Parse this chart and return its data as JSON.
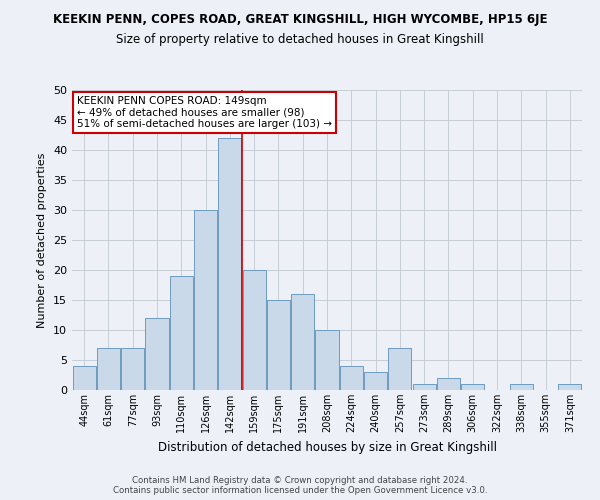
{
  "title": "KEEKIN PENN, COPES ROAD, GREAT KINGSHILL, HIGH WYCOMBE, HP15 6JE",
  "subtitle": "Size of property relative to detached houses in Great Kingshill",
  "xlabel": "Distribution of detached houses by size in Great Kingshill",
  "ylabel": "Number of detached properties",
  "footer1": "Contains HM Land Registry data © Crown copyright and database right 2024.",
  "footer2": "Contains public sector information licensed under the Open Government Licence v3.0.",
  "bar_labels": [
    "44sqm",
    "61sqm",
    "77sqm",
    "93sqm",
    "110sqm",
    "126sqm",
    "142sqm",
    "159sqm",
    "175sqm",
    "191sqm",
    "208sqm",
    "224sqm",
    "240sqm",
    "257sqm",
    "273sqm",
    "289sqm",
    "306sqm",
    "322sqm",
    "338sqm",
    "355sqm",
    "371sqm"
  ],
  "bar_values": [
    4,
    7,
    7,
    12,
    19,
    30,
    42,
    20,
    15,
    16,
    10,
    4,
    3,
    7,
    1,
    2,
    1,
    0,
    1,
    0,
    1
  ],
  "bar_color": "#c9d9ea",
  "bar_edge_color": "#6e9bbf",
  "bar_edge_width": 0.7,
  "grid_color": "#c5ced8",
  "background_color": "#edf1f7",
  "annotation_text": "KEEKIN PENN COPES ROAD: 149sqm\n← 49% of detached houses are smaller (98)\n51% of semi-detached houses are larger (103) →",
  "annotation_box_color": "#ffffff",
  "annotation_box_edge_color": "#cc0000",
  "red_line_x": 6.5,
  "red_line_color": "#cc0000",
  "ylim": [
    0,
    50
  ],
  "yticks": [
    0,
    5,
    10,
    15,
    20,
    25,
    30,
    35,
    40,
    45,
    50
  ]
}
